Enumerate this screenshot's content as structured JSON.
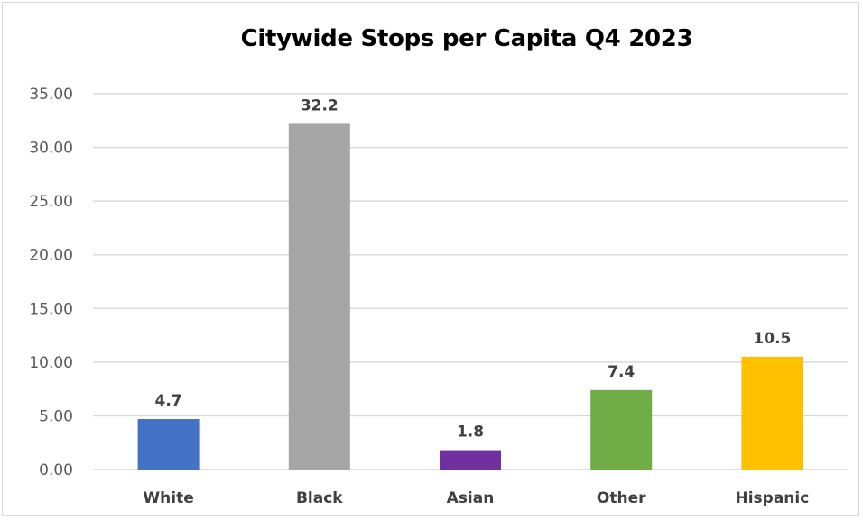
{
  "chart_data": {
    "type": "bar",
    "title": "Citywide Stops per Capita Q4 2023",
    "xlabel": "",
    "ylabel": "",
    "categories": [
      "White",
      "Black",
      "Asian",
      "Other",
      "Hispanic"
    ],
    "values": [
      4.7,
      32.2,
      1.8,
      7.4,
      10.5
    ],
    "value_labels": [
      "4.7",
      "32.2",
      "1.8",
      "7.4",
      "10.5"
    ],
    "colors": [
      "#4472c4",
      "#a5a5a5",
      "#7030a0",
      "#70ad47",
      "#ffc000"
    ],
    "ylim": [
      0,
      35
    ],
    "yticks": [
      0,
      5,
      10,
      15,
      20,
      25,
      30,
      35
    ],
    "ytick_labels": [
      "0.00",
      "5.00",
      "10.00",
      "15.00",
      "20.00",
      "25.00",
      "30.00",
      "35.00"
    ],
    "grid": true,
    "legend": "none"
  }
}
